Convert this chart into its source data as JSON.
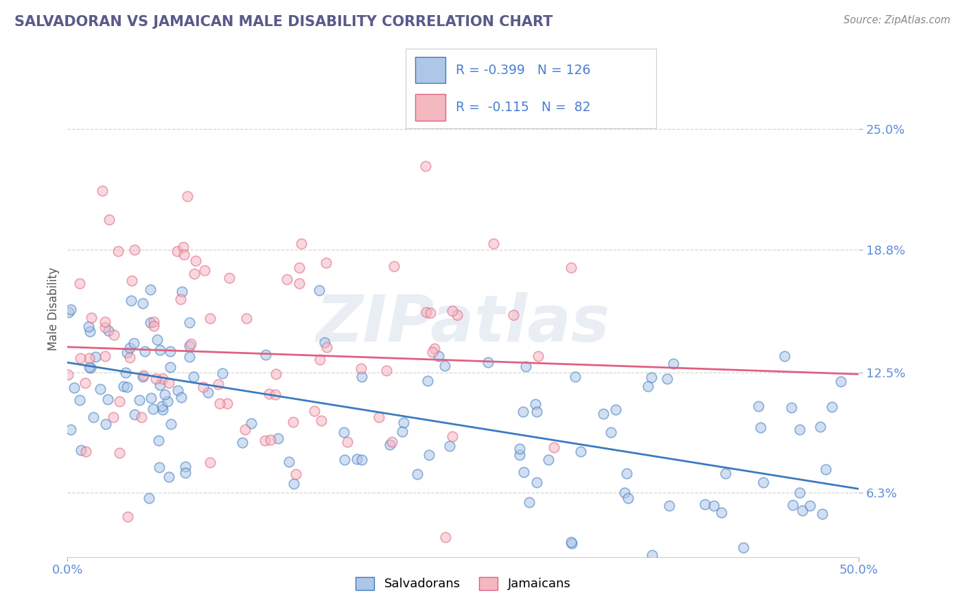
{
  "title": "SALVADORAN VS JAMAICAN MALE DISABILITY CORRELATION CHART",
  "source": "Source: ZipAtlas.com",
  "ylabel_label": "Male Disability",
  "xlim": [
    0.0,
    0.5
  ],
  "ylim": [
    0.03,
    0.285
  ],
  "xtick_labels": [
    "0.0%",
    "50.0%"
  ],
  "ytick_labels": [
    "6.3%",
    "12.5%",
    "18.8%",
    "25.0%"
  ],
  "ytick_vals": [
    0.063,
    0.125,
    0.188,
    0.25
  ],
  "background_color": "#ffffff",
  "grid_color": "#cccccc",
  "salvadoran_color": "#aec6e8",
  "jamaican_color": "#f4b8c1",
  "salvadoran_line_color": "#3a7abf",
  "jamaican_line_color": "#e06080",
  "R_salvadoran": -0.399,
  "N_salvadoran": 126,
  "R_jamaican": -0.115,
  "N_jamaican": 82,
  "watermark": "ZIPatlas",
  "legend_salvadoran": "Salvadorans",
  "legend_jamaican": "Jamaicans",
  "title_color": "#5a5a8a",
  "source_color": "#888888",
  "tick_color": "#5b8dd9",
  "legend_r_color": "#4a7fd4",
  "sal_intercept": 0.13,
  "sal_slope": -0.13,
  "jam_intercept": 0.138,
  "jam_slope": -0.028
}
